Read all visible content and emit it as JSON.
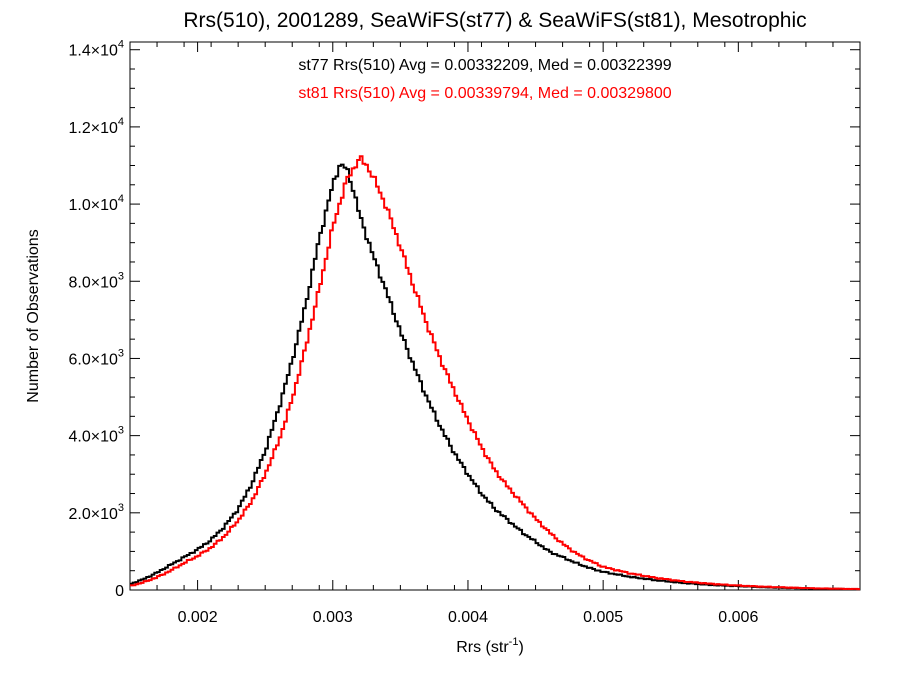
{
  "chart_data": {
    "type": "line",
    "step": true,
    "title": "Rrs(510), 2001289, SeaWiFS(st77) & SeaWiFS(st81), Mesotrophic",
    "xlabel": "Rrs (str",
    "xlabel_superscript": "-1",
    "xlabel_suffix": ")",
    "ylabel": "Number of Observations",
    "xlim": [
      0.0015,
      0.0069
    ],
    "ylim": [
      0,
      14200
    ],
    "x_ticks": [
      {
        "value": 0.002,
        "label": "0.002"
      },
      {
        "value": 0.003,
        "label": "0.003"
      },
      {
        "value": 0.004,
        "label": "0.004"
      },
      {
        "value": 0.005,
        "label": "0.005"
      },
      {
        "value": 0.006,
        "label": "0.006"
      }
    ],
    "y_ticks": [
      {
        "value": 0,
        "mantissa": "0",
        "exponent": ""
      },
      {
        "value": 2000,
        "mantissa": "2.0×10",
        "exponent": "3"
      },
      {
        "value": 4000,
        "mantissa": "4.0×10",
        "exponent": "3"
      },
      {
        "value": 6000,
        "mantissa": "6.0×10",
        "exponent": "3"
      },
      {
        "value": 8000,
        "mantissa": "8.0×10",
        "exponent": "3"
      },
      {
        "value": 10000,
        "mantissa": "1.0×10",
        "exponent": "4"
      },
      {
        "value": 12000,
        "mantissa": "1.2×10",
        "exponent": "4"
      },
      {
        "value": 14000,
        "mantissa": "1.4×10",
        "exponent": "4"
      }
    ],
    "annotations": [
      {
        "text": "st77 Rrs(510) Avg = 0.00332209, Med = 0.00322399",
        "color": "#000000"
      },
      {
        "text": "st81 Rrs(510) Avg = 0.00339794, Med = 0.00329800",
        "color": "#ff0000"
      }
    ],
    "series": [
      {
        "key": "st77",
        "color": "#000000",
        "x": [
          0.0015,
          0.0016,
          0.0017,
          0.0018,
          0.0019,
          0.002,
          0.0021,
          0.0022,
          0.0023,
          0.0024,
          0.0025,
          0.0026,
          0.0027,
          0.0028,
          0.0029,
          0.003,
          0.00305,
          0.0031,
          0.00315,
          0.0032,
          0.0033,
          0.0034,
          0.0035,
          0.0036,
          0.0037,
          0.0038,
          0.0039,
          0.004,
          0.0041,
          0.0042,
          0.0043,
          0.0044,
          0.0045,
          0.0046,
          0.0047,
          0.0048,
          0.0049,
          0.005,
          0.0052,
          0.0054,
          0.0056,
          0.0058,
          0.006,
          0.0062,
          0.0064,
          0.0066,
          0.0069
        ],
        "y": [
          150,
          280,
          450,
          650,
          850,
          1050,
          1300,
          1650,
          2100,
          2750,
          3600,
          4700,
          5950,
          7400,
          9100,
          10500,
          11000,
          10950,
          10400,
          9700,
          8650,
          7700,
          6700,
          5800,
          4950,
          4200,
          3550,
          3000,
          2500,
          2100,
          1800,
          1500,
          1250,
          1000,
          850,
          700,
          570,
          470,
          340,
          250,
          180,
          130,
          100,
          70,
          50,
          35,
          20
        ]
      },
      {
        "key": "st81",
        "color": "#ff0000",
        "x": [
          0.0015,
          0.0016,
          0.0017,
          0.0018,
          0.0019,
          0.002,
          0.0021,
          0.0022,
          0.0023,
          0.0024,
          0.0025,
          0.0026,
          0.0027,
          0.0028,
          0.0029,
          0.003,
          0.0031,
          0.0032,
          0.00325,
          0.0033,
          0.0034,
          0.0035,
          0.0036,
          0.0037,
          0.0038,
          0.0039,
          0.004,
          0.0041,
          0.0042,
          0.0043,
          0.0044,
          0.0045,
          0.0046,
          0.0047,
          0.0048,
          0.0049,
          0.005,
          0.0052,
          0.0054,
          0.0056,
          0.0058,
          0.006,
          0.0062,
          0.0064,
          0.0066,
          0.0069
        ],
        "y": [
          100,
          200,
          330,
          500,
          700,
          880,
          1100,
          1400,
          1800,
          2300,
          3000,
          3850,
          4950,
          6300,
          7800,
          9400,
          10600,
          11200,
          11000,
          10700,
          9900,
          8900,
          7850,
          6850,
          5950,
          5150,
          4400,
          3700,
          3100,
          2650,
          2250,
          1850,
          1500,
          1200,
          950,
          760,
          600,
          430,
          310,
          220,
          160,
          115,
          85,
          60,
          40,
          25
        ]
      }
    ]
  }
}
